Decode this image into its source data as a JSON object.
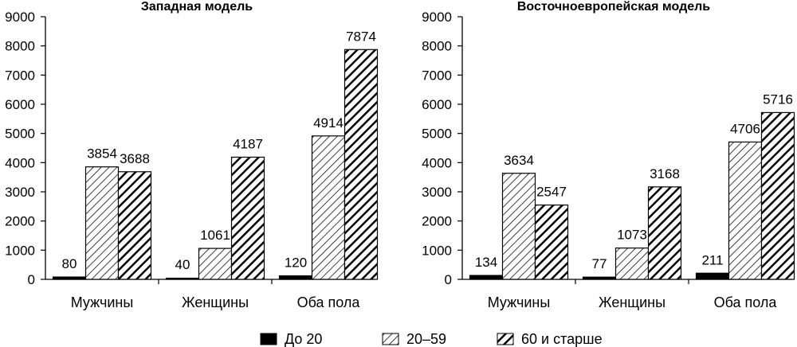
{
  "chart_data": [
    {
      "type": "bar",
      "title": "Западная модель",
      "categories": [
        "Мужчины",
        "Женщины",
        "Оба пола"
      ],
      "series": [
        {
          "name": "До 20",
          "values": [
            80,
            40,
            120
          ]
        },
        {
          "name": "20–59",
          "values": [
            3854,
            1061,
            4914
          ]
        },
        {
          "name": "60 и старше",
          "values": [
            3688,
            4187,
            7874
          ]
        }
      ],
      "ylim": [
        0,
        9000
      ],
      "yticks": [
        "0",
        "1000",
        "2000",
        "3000",
        "4000",
        "5000",
        "6000",
        "7000",
        "8000",
        "9000"
      ],
      "grid": false
    },
    {
      "type": "bar",
      "title": "Восточноевропейская модель",
      "categories": [
        "Мужчины",
        "Женщины",
        "Оба пола"
      ],
      "series": [
        {
          "name": "До 20",
          "values": [
            134,
            77,
            211
          ]
        },
        {
          "name": "20–59",
          "values": [
            3634,
            1073,
            4706
          ]
        },
        {
          "name": "60 и старше",
          "values": [
            2547,
            3168,
            5716
          ]
        }
      ],
      "ylim": [
        0,
        9000
      ],
      "yticks": [
        "0",
        "1000",
        "2000",
        "3000",
        "4000",
        "5000",
        "6000",
        "7000",
        "8000",
        "9000"
      ],
      "grid": false
    }
  ],
  "legend": {
    "placement": "bottom",
    "items": [
      {
        "label": "До 20",
        "pattern": "solid",
        "color": "#000000"
      },
      {
        "label": "20–59",
        "pattern": "hatch-light",
        "color": "#000000"
      },
      {
        "label": "60 и старше",
        "pattern": "hatch-heavy",
        "color": "#000000"
      }
    ]
  }
}
